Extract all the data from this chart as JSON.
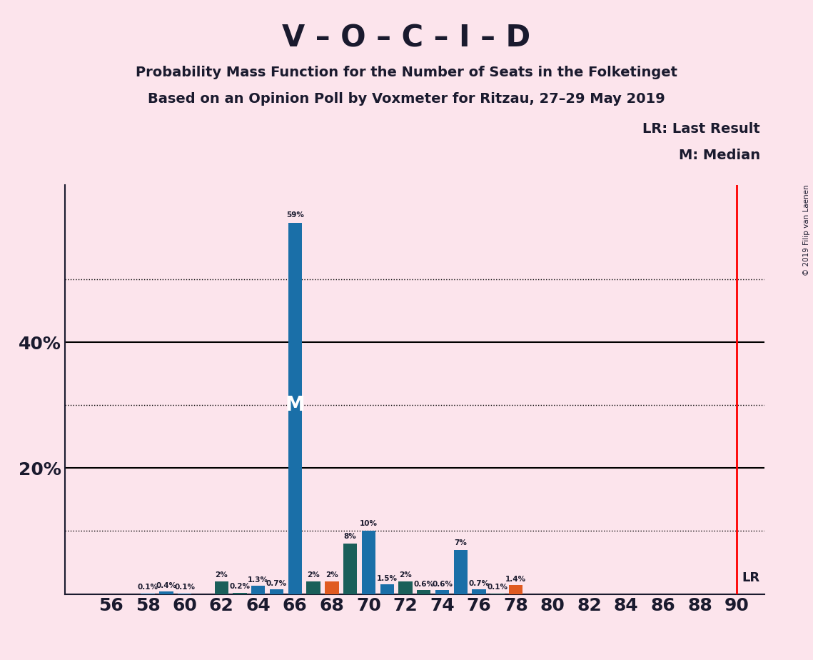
{
  "title_main": "V – O – C – I – D",
  "subtitle1": "Probability Mass Function for the Number of Seats in the Folketinget",
  "subtitle2": "Based on an Opinion Poll by Voxmeter for Ritzau, 27–29 May 2019",
  "copyright": "© 2019 Filip van Laenen",
  "background_color": "#fce4ec",
  "bar_color_blue": "#1a6fa8",
  "bar_color_teal": "#1a5f5a",
  "bar_color_orange": "#e05a20",
  "seats": [
    56,
    57,
    58,
    59,
    60,
    61,
    62,
    63,
    64,
    65,
    66,
    67,
    68,
    69,
    70,
    71,
    72,
    73,
    74,
    75,
    76,
    77,
    78,
    79,
    80,
    81,
    82,
    83,
    84,
    85,
    86,
    87,
    88,
    89,
    90
  ],
  "values": [
    0.0,
    0.0,
    0.1,
    0.4,
    0.1,
    0.0,
    2.0,
    0.2,
    1.3,
    0.7,
    59.0,
    2.0,
    2.0,
    8.0,
    10.0,
    1.5,
    2.0,
    0.6,
    0.6,
    7.0,
    0.7,
    0.1,
    1.4,
    0.0,
    0.0,
    0.0,
    0.0,
    0.0,
    0.0,
    0.0,
    0.0,
    0.0,
    0.0,
    0.0,
    0.0
  ],
  "colors": [
    "blue",
    "blue",
    "blue",
    "blue",
    "blue",
    "blue",
    "teal",
    "teal",
    "blue",
    "blue",
    "blue",
    "teal",
    "orange",
    "teal",
    "blue",
    "blue",
    "teal",
    "teal",
    "blue",
    "blue",
    "blue",
    "teal",
    "orange",
    "blue",
    "blue",
    "blue",
    "blue",
    "blue",
    "blue",
    "blue",
    "blue",
    "blue",
    "blue",
    "blue",
    "blue"
  ],
  "labels": [
    "0%",
    "0%",
    "0.1%",
    "0.4%",
    "0.1%",
    "0%",
    "2%",
    "0.2%",
    "1.3%",
    "0.7%",
    "59%",
    "2%",
    "2%",
    "8%",
    "10%",
    "1.5%",
    "2%",
    "0.6%",
    "0.6%",
    "7%",
    "0.7%",
    "0.1%",
    "1.4%",
    "0%",
    "0%",
    "0%",
    "0%",
    "0%",
    "0%",
    "0%",
    "0%",
    "0%",
    "0%",
    "0%",
    "0%"
  ],
  "median_seat": 66,
  "last_result_seat": 90,
  "dotted_lines": [
    10,
    30,
    50
  ],
  "solid_lines": [
    20,
    40
  ],
  "lr_label": "LR: Last Result",
  "m_label": "M: Median",
  "lr_short": "LR",
  "m_short": "M",
  "ylim_max": 65,
  "xlim_min": 53.5,
  "xlim_max": 91.5
}
